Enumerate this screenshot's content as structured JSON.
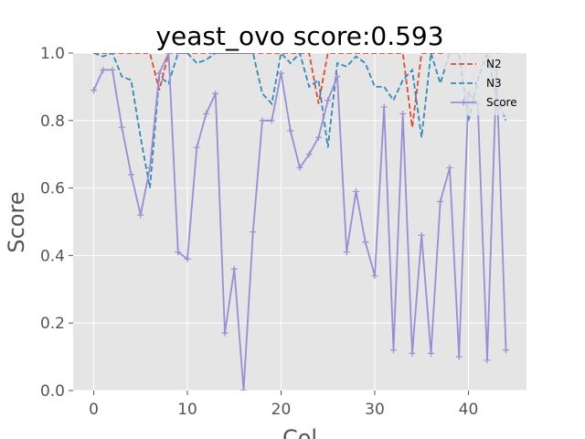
{
  "chart_data": {
    "type": "line",
    "title": "yeast_ovo score:0.593",
    "xlabel": "Col",
    "ylabel": "Score",
    "xlim": [
      -2.2,
      46.2
    ],
    "ylim": [
      0.0,
      1.0
    ],
    "xticks": [
      0,
      10,
      20,
      30,
      40
    ],
    "yticks": [
      0.0,
      0.2,
      0.4,
      0.6,
      0.8,
      1.0
    ],
    "xtick_labels": [
      "0",
      "10",
      "20",
      "30",
      "40"
    ],
    "ytick_labels": [
      "0.0",
      "0.2",
      "0.4",
      "0.6",
      "0.8",
      "1.0"
    ],
    "grid": true,
    "legend_position": "top-right",
    "x": [
      0,
      1,
      2,
      3,
      4,
      5,
      6,
      7,
      8,
      9,
      10,
      11,
      12,
      13,
      14,
      15,
      16,
      17,
      18,
      19,
      20,
      21,
      22,
      23,
      24,
      25,
      26,
      27,
      28,
      29,
      30,
      31,
      32,
      33,
      34,
      35,
      36,
      37,
      38,
      39,
      40,
      41,
      42,
      43,
      44
    ],
    "series": [
      {
        "name": "N2",
        "color": "#e24a33",
        "style": "dashed",
        "values": [
          1.0,
          1.0,
          1.0,
          1.0,
          1.0,
          1.0,
          1.0,
          0.89,
          1.0,
          1.0,
          1.0,
          1.0,
          1.0,
          1.0,
          1.0,
          1.0,
          1.0,
          1.0,
          1.0,
          1.0,
          1.0,
          1.0,
          1.0,
          1.0,
          0.85,
          1.0,
          1.0,
          1.0,
          1.0,
          1.0,
          1.0,
          1.0,
          1.0,
          1.0,
          0.78,
          1.0,
          1.0,
          1.0,
          1.0,
          1.0,
          1.0,
          1.0,
          1.0,
          1.0,
          1.0
        ]
      },
      {
        "name": "N3",
        "color": "#348abd",
        "style": "dashed",
        "values": [
          1.0,
          0.99,
          1.0,
          0.93,
          0.92,
          0.75,
          0.6,
          0.93,
          0.91,
          1.0,
          1.0,
          0.97,
          0.98,
          1.0,
          1.0,
          1.0,
          1.0,
          1.0,
          0.88,
          0.85,
          1.0,
          0.97,
          1.0,
          0.9,
          0.92,
          0.72,
          0.97,
          0.96,
          0.99,
          0.97,
          0.9,
          0.9,
          0.86,
          0.92,
          0.95,
          0.75,
          1.0,
          0.91,
          1.0,
          1.0,
          0.8,
          0.92,
          1.0,
          0.87,
          0.8
        ]
      },
      {
        "name": "Score",
        "color": "#988ed5",
        "style": "solid",
        "marker": "+",
        "values": [
          0.89,
          0.95,
          0.95,
          0.78,
          0.64,
          0.52,
          0.66,
          0.94,
          1.0,
          0.41,
          0.39,
          0.72,
          0.82,
          0.88,
          0.17,
          0.36,
          0.0,
          0.47,
          0.8,
          0.8,
          0.94,
          0.77,
          0.66,
          0.7,
          0.75,
          0.86,
          0.93,
          0.41,
          0.59,
          0.44,
          0.34,
          0.84,
          0.12,
          0.82,
          0.11,
          0.46,
          0.11,
          0.56,
          0.66,
          0.1,
          0.88,
          0.85,
          0.09,
          0.95,
          0.12
        ]
      }
    ]
  }
}
